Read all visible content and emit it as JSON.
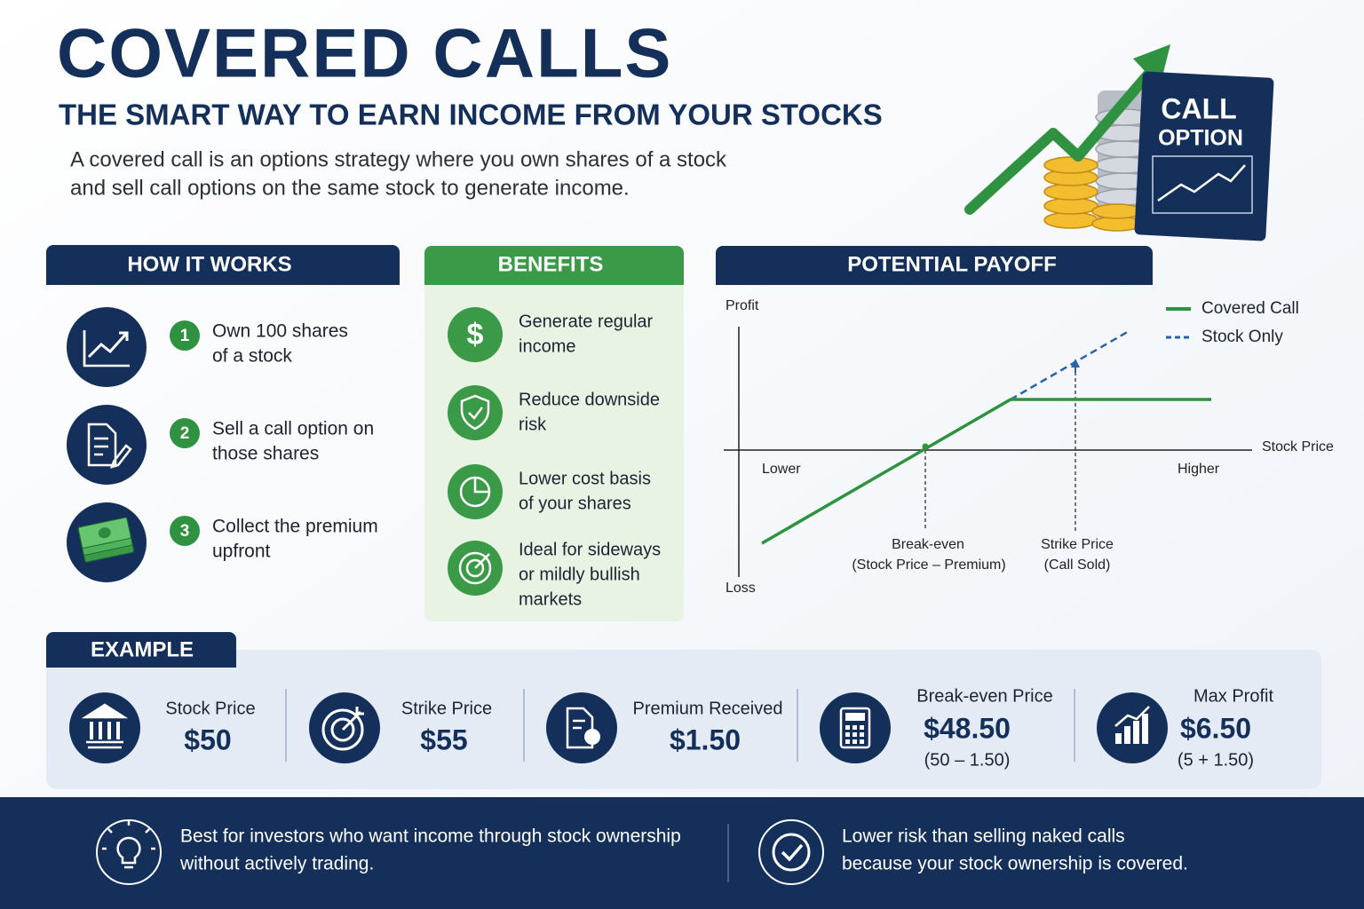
{
  "header": {
    "title": "COVERED CALLS",
    "subtitle": "THE SMART WAY TO EARN INCOME FROM YOUR STOCKS",
    "description": [
      "A covered call is an options strategy where you own shares of a stock",
      "and sell call options on the same stock to generate income."
    ],
    "badge": [
      "CALL",
      "OPTION"
    ]
  },
  "how_it_works": {
    "title": "HOW IT WORKS",
    "steps": [
      {
        "number": 1,
        "text": [
          "Own 100 shares",
          "of a stock"
        ]
      },
      {
        "number": 2,
        "text": [
          "Sell a call option on",
          "those shares"
        ]
      },
      {
        "number": 3,
        "text": [
          "Collect the premium",
          "upfront"
        ]
      }
    ]
  },
  "benefits": {
    "title": "BENEFITS",
    "items": [
      [
        "Generate regular",
        "income"
      ],
      [
        "Reduce downside",
        "risk"
      ],
      [
        "Lower cost basis",
        "of your shares"
      ],
      [
        "Ideal for sideways",
        "or mildly bullish",
        "markets"
      ]
    ]
  },
  "payoff": {
    "title": "POTENTIAL PAYOFF",
    "y_top": "Profit",
    "y_bottom": "Loss",
    "x_label": "Stock Price",
    "x_left": "Lower",
    "x_right": "Higher",
    "break_even": [
      "Break-even",
      "(Stock Price – Premium)"
    ],
    "strike": [
      "Strike Price",
      "(Call Sold)"
    ],
    "legend": [
      "Covered Call",
      "Stock Only"
    ]
  },
  "example": {
    "title": "EXAMPLE",
    "items": [
      {
        "label": "Stock Price",
        "value": "$50"
      },
      {
        "label": "Strike Price",
        "value": "$55"
      },
      {
        "label": "Premium Received",
        "value": "$1.50"
      },
      {
        "label": "Break-even Price",
        "value": "$48.50",
        "note": "(50 – 1.50)"
      },
      {
        "label": "Max Profit",
        "value": "$6.50",
        "note": "(5 + 1.50)"
      }
    ]
  },
  "footer": [
    [
      "Best for investors who want income through stock ownership",
      "without actively trading."
    ],
    [
      "Lower risk than selling naked calls",
      "because your stock ownership is covered."
    ]
  ]
}
